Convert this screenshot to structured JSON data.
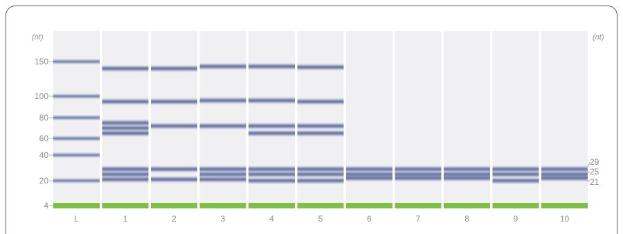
{
  "unit_left": "(nt)",
  "unit_right": "(nt)",
  "ladder_marks": [
    {
      "label": "150",
      "nt": 150
    },
    {
      "label": "100",
      "nt": 100
    },
    {
      "label": "80",
      "nt": 80
    },
    {
      "label": "60",
      "nt": 60
    },
    {
      "label": "40",
      "nt": 40
    },
    {
      "label": "20",
      "nt": 20
    },
    {
      "label": "4",
      "nt": 4
    }
  ],
  "right_marks": [
    {
      "label": "29",
      "nt": 29
    },
    {
      "label": "25",
      "nt": 25
    },
    {
      "label": "21",
      "nt": 21
    }
  ],
  "lanes": [
    {
      "label": "L",
      "bands": [
        150,
        100,
        80,
        60,
        40,
        20
      ]
    },
    {
      "label": "1",
      "bands": [
        140,
        95,
        75,
        70,
        65,
        29,
        25,
        21
      ]
    },
    {
      "label": "2",
      "bands": [
        140,
        95,
        72,
        29,
        21
      ]
    },
    {
      "label": "3",
      "bands": [
        143,
        96,
        72,
        29,
        25,
        21
      ]
    },
    {
      "label": "4",
      "bands": [
        143,
        96,
        72,
        65,
        29,
        25,
        20
      ]
    },
    {
      "label": "5",
      "bands": [
        142,
        95,
        72,
        65,
        29,
        25,
        20
      ]
    },
    {
      "label": "6",
      "bands": [
        29,
        25,
        22
      ]
    },
    {
      "label": "7",
      "bands": [
        29,
        25,
        22
      ]
    },
    {
      "label": "8",
      "bands": [
        29,
        25,
        22
      ]
    },
    {
      "label": "9",
      "bands": [
        29,
        25,
        20
      ]
    },
    {
      "label": "10",
      "bands": [
        29,
        25,
        22
      ]
    }
  ],
  "colors": {
    "lane_bg": "#f0f0f3",
    "band": "#2e3f82",
    "marker_bar": "#7dc142",
    "text": "#8e8e8e"
  }
}
